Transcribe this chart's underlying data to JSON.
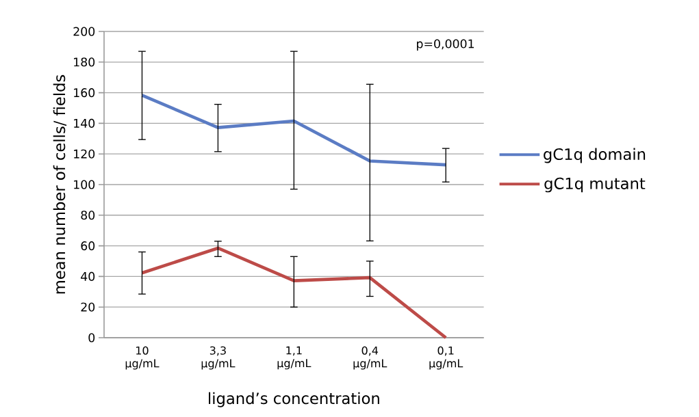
{
  "chart_data": {
    "type": "line",
    "xlabel": "ligand’s concentration",
    "ylabel": "mean number of cells/ fields",
    "categories": [
      "10 µg/mL",
      "3,3 µg/mL",
      "1,1 µg/mL",
      "0,4 µg/mL",
      "0,1 µg/mL"
    ],
    "series": [
      {
        "name": "gC1q domain",
        "color": "#5b7cc4",
        "values": [
          158.3,
          137.2,
          141.5,
          115.4,
          112.9
        ],
        "errors": [
          [
            129.4,
            187
          ],
          [
            121.5,
            152.4
          ],
          [
            97,
            187
          ],
          [
            63.2,
            165.5
          ],
          [
            101.7,
            123.6
          ]
        ]
      },
      {
        "name": "gC1q mutant",
        "color": "#bd4b48",
        "values": [
          42.3,
          58.5,
          37.2,
          39.2,
          0
        ],
        "errors": [
          [
            28.5,
            56
          ],
          [
            53,
            63
          ],
          [
            20,
            53
          ],
          [
            27,
            50
          ],
          null
        ]
      }
    ],
    "ylim": [
      0,
      200
    ],
    "yticks": [
      0,
      20,
      40,
      60,
      80,
      100,
      120,
      140,
      160,
      180,
      200
    ],
    "grid": "y",
    "legend": "right",
    "marker": "none",
    "line_style": "solid",
    "annotations": [
      "p=0,0001"
    ]
  }
}
